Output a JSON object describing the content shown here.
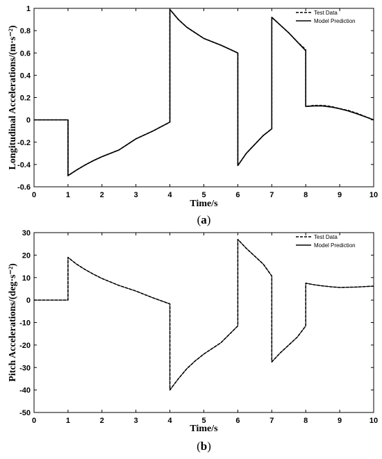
{
  "chart_data": [
    {
      "type": "line",
      "caption_open": "(",
      "caption_letter": "a",
      "caption_close": ")",
      "xlabel": "Time/s",
      "ylabel": "Longitudinal Accelerations/(m·s⁻²)",
      "xlim": [
        0,
        10
      ],
      "ylim": [
        -0.6,
        1
      ],
      "xticks": [
        "0",
        "1",
        "2",
        "3",
        "4",
        "5",
        "6",
        "7",
        "8",
        "9",
        "10"
      ],
      "yticks": [
        "-0.6",
        "-0.4",
        "-0.2",
        "0",
        "0.2",
        "0.4",
        "0.6",
        "0.8",
        "1"
      ],
      "grid": false,
      "legend_position": "top-right",
      "series": [
        {
          "name": "Test Data",
          "style": "dashed",
          "points": [
            [
              0,
              0
            ],
            [
              1,
              0
            ],
            [
              1,
              -0.5
            ],
            [
              1.25,
              -0.45
            ],
            [
              1.5,
              -0.405
            ],
            [
              1.75,
              -0.365
            ],
            [
              2,
              -0.33
            ],
            [
              2.5,
              -0.27
            ],
            [
              3,
              -0.17
            ],
            [
              3.5,
              -0.1
            ],
            [
              4,
              -0.02
            ],
            [
              4,
              0.99
            ],
            [
              4.25,
              0.9
            ],
            [
              4.5,
              0.83
            ],
            [
              4.75,
              0.78
            ],
            [
              5,
              0.73
            ],
            [
              5.5,
              0.67
            ],
            [
              6,
              0.6
            ],
            [
              6,
              -0.41
            ],
            [
              6.25,
              -0.3
            ],
            [
              6.5,
              -0.22
            ],
            [
              6.75,
              -0.14
            ],
            [
              7,
              -0.08
            ],
            [
              7,
              0.92
            ],
            [
              7.25,
              0.85
            ],
            [
              7.5,
              0.78
            ],
            [
              7.75,
              0.7
            ],
            [
              8,
              0.63
            ],
            [
              8,
              0.12
            ],
            [
              8.25,
              0.13
            ],
            [
              8.5,
              0.13
            ],
            [
              8.75,
              0.12
            ],
            [
              9,
              0.1
            ],
            [
              9.25,
              0.085
            ],
            [
              9.5,
              0.06
            ],
            [
              9.75,
              0.03
            ],
            [
              10,
              0
            ]
          ]
        },
        {
          "name": "Model Prediction",
          "style": "solid",
          "points": [
            [
              0,
              0
            ],
            [
              1,
              0
            ],
            [
              1,
              -0.5
            ],
            [
              1.25,
              -0.45
            ],
            [
              1.5,
              -0.405
            ],
            [
              1.75,
              -0.365
            ],
            [
              2,
              -0.33
            ],
            [
              2.5,
              -0.27
            ],
            [
              3,
              -0.17
            ],
            [
              3.5,
              -0.1
            ],
            [
              4,
              -0.02
            ],
            [
              4,
              0.99
            ],
            [
              4.25,
              0.9
            ],
            [
              4.5,
              0.83
            ],
            [
              4.75,
              0.78
            ],
            [
              5,
              0.73
            ],
            [
              5.5,
              0.67
            ],
            [
              6,
              0.6
            ],
            [
              6,
              -0.41
            ],
            [
              6.25,
              -0.3
            ],
            [
              6.5,
              -0.22
            ],
            [
              6.75,
              -0.14
            ],
            [
              7,
              -0.08
            ],
            [
              7,
              0.92
            ],
            [
              7.25,
              0.85
            ],
            [
              7.5,
              0.78
            ],
            [
              7.75,
              0.7
            ],
            [
              8,
              0.62
            ],
            [
              8,
              0.12
            ],
            [
              8.25,
              0.125
            ],
            [
              8.5,
              0.125
            ],
            [
              8.75,
              0.115
            ],
            [
              9,
              0.1
            ],
            [
              9.25,
              0.08
            ],
            [
              9.5,
              0.055
            ],
            [
              9.75,
              0.028
            ],
            [
              10,
              0
            ]
          ]
        }
      ]
    },
    {
      "type": "line",
      "caption_open": "(",
      "caption_letter": "b",
      "caption_close": ")",
      "xlabel": "Time/s",
      "ylabel": "Pitch Accelerations/(deg·s⁻²)",
      "xlim": [
        0,
        10
      ],
      "ylim": [
        -50,
        30
      ],
      "xticks": [
        "0",
        "1",
        "2",
        "3",
        "4",
        "5",
        "6",
        "7",
        "8",
        "9",
        "10"
      ],
      "yticks": [
        "-50",
        "-40",
        "-30",
        "-20",
        "-10",
        "0",
        "10",
        "20",
        "30"
      ],
      "grid": false,
      "legend_position": "top-right",
      "series": [
        {
          "name": "Test Data",
          "style": "dashed",
          "points": [
            [
              0,
              0
            ],
            [
              1,
              0
            ],
            [
              1,
              19
            ],
            [
              1.25,
              16
            ],
            [
              1.5,
              13.6
            ],
            [
              1.75,
              11.5
            ],
            [
              2,
              9.6
            ],
            [
              2.5,
              6.5
            ],
            [
              3,
              4
            ],
            [
              3.5,
              1
            ],
            [
              4,
              -1.7
            ],
            [
              4,
              -40
            ],
            [
              4.25,
              -35
            ],
            [
              4.5,
              -30.5
            ],
            [
              4.75,
              -27
            ],
            [
              5,
              -24
            ],
            [
              5.5,
              -19
            ],
            [
              6,
              -11.5
            ],
            [
              6,
              27
            ],
            [
              6.25,
              23
            ],
            [
              6.5,
              19.5
            ],
            [
              6.75,
              16
            ],
            [
              7,
              10.7
            ],
            [
              7,
              -27.5
            ],
            [
              7.25,
              -23.5
            ],
            [
              7.5,
              -20
            ],
            [
              7.75,
              -16.5
            ],
            [
              8,
              -11.5
            ],
            [
              8,
              7.5
            ],
            [
              8.25,
              6.8
            ],
            [
              8.5,
              6.3
            ],
            [
              8.75,
              5.9
            ],
            [
              9,
              5.6
            ],
            [
              9.5,
              5.8
            ],
            [
              10,
              6.2
            ]
          ]
        },
        {
          "name": "Model Prediction",
          "style": "solid",
          "points": [
            [
              0,
              0
            ],
            [
              1,
              0
            ],
            [
              1,
              19
            ],
            [
              1.25,
              16
            ],
            [
              1.5,
              13.6
            ],
            [
              1.75,
              11.5
            ],
            [
              2,
              9.6
            ],
            [
              2.5,
              6.5
            ],
            [
              3,
              4
            ],
            [
              3.5,
              1
            ],
            [
              4,
              -1.7
            ],
            [
              4,
              -40
            ],
            [
              4.25,
              -35
            ],
            [
              4.5,
              -30.5
            ],
            [
              4.75,
              -27
            ],
            [
              5,
              -24
            ],
            [
              5.5,
              -19
            ],
            [
              6,
              -11.5
            ],
            [
              6,
              27
            ],
            [
              6.25,
              23
            ],
            [
              6.5,
              19.5
            ],
            [
              6.75,
              16
            ],
            [
              7,
              10.7
            ],
            [
              7,
              -27.5
            ],
            [
              7.25,
              -23.5
            ],
            [
              7.5,
              -20
            ],
            [
              7.75,
              -16.5
            ],
            [
              8,
              -11.5
            ],
            [
              8,
              7.5
            ],
            [
              8.25,
              6.8
            ],
            [
              8.5,
              6.3
            ],
            [
              8.75,
              5.9
            ],
            [
              9,
              5.6
            ],
            [
              9.5,
              5.8
            ],
            [
              10,
              6.2
            ]
          ]
        }
      ]
    }
  ]
}
